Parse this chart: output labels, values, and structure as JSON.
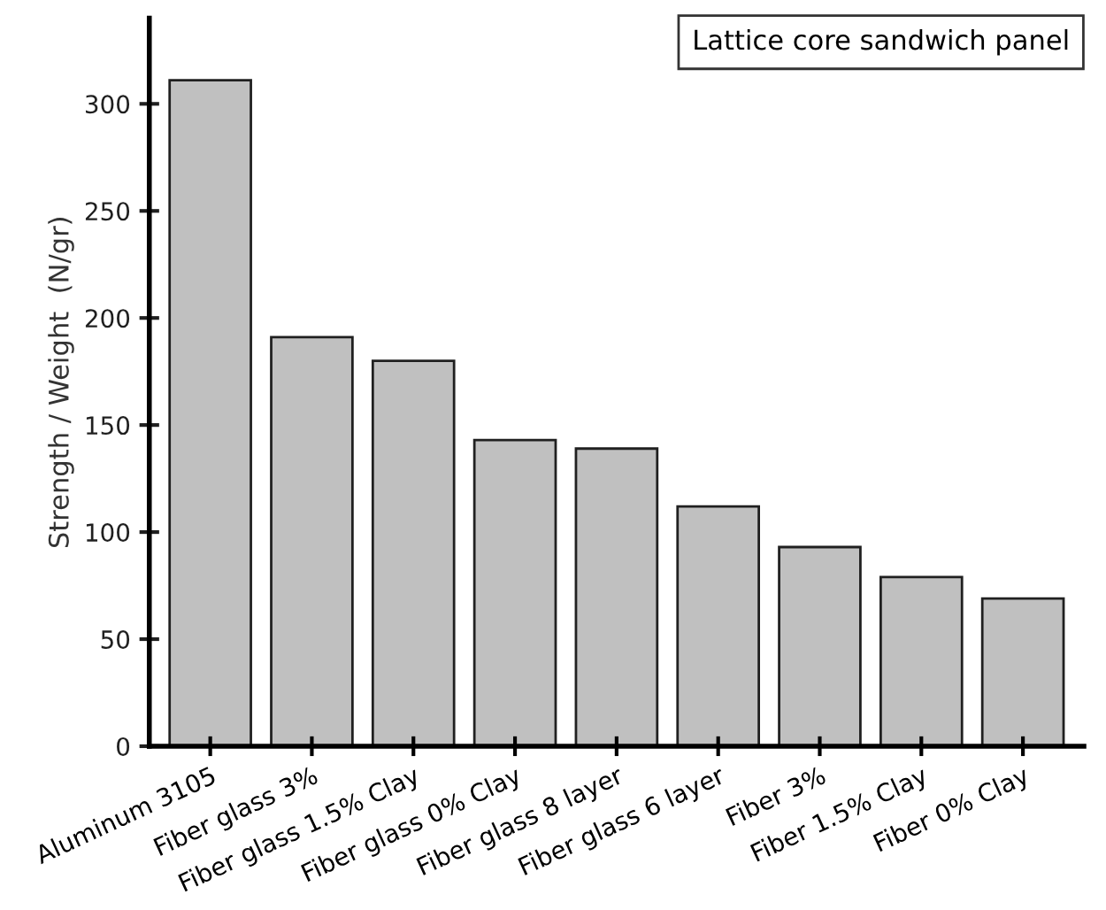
{
  "chart_data": {
    "type": "bar",
    "categories": [
      "Aluminum 3105",
      "Fiber glass 3%",
      "Fiber glass 1.5% Clay",
      "Fiber glass 0% Clay",
      "Fiber glass 8 layer",
      "Fiber glass 6 layer",
      "Fiber 3%",
      "Fiber 1.5% Clay",
      "Fiber 0% Clay"
    ],
    "values": [
      311,
      191,
      180,
      143,
      139,
      112,
      93,
      79,
      69
    ],
    "color": "#c0c0c0",
    "ylabel": "Strength / Weight  (N/gr)",
    "annotations": [
      "Lattice core sandwich panel"
    ],
    "ylim": [
      0,
      340
    ],
    "yticks": [
      0,
      50,
      100,
      150,
      200,
      250,
      300
    ],
    "grid": false,
    "legend": false
  }
}
